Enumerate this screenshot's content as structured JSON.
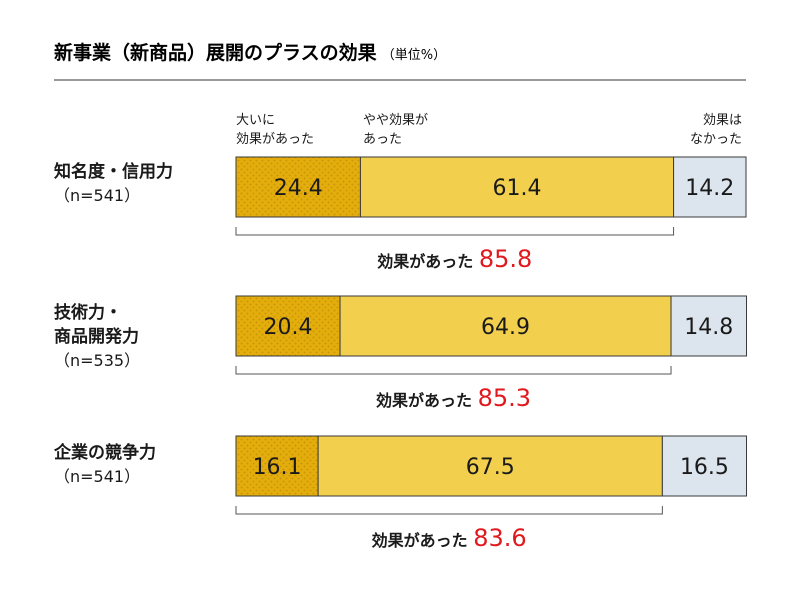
{
  "title": "新事業（新商品）展開のプラスの効果",
  "unit": "（単位%）",
  "legend": [
    {
      "line1": "大いに",
      "line2": "効果があった"
    },
    {
      "line1": "やや効果が",
      "line2": "あった"
    },
    {
      "line1": "効果は",
      "line2": "なかった"
    }
  ],
  "colors": {
    "great": "#e3ad0c",
    "some": "#f3cf4e",
    "none": "#dce5ee",
    "total": "#e0191e",
    "rule": "#333333",
    "text": "#1a1a1a"
  },
  "chart_data": {
    "type": "bar",
    "orientation": "horizontal",
    "stacked": true,
    "xlim": [
      0,
      100
    ],
    "categories": [
      {
        "label_lines": [
          "知名度・信用力",
          "（n=541）"
        ],
        "total_label": "効果があった",
        "total": "85.8"
      },
      {
        "label_lines": [
          "技術力・",
          "商品開発力",
          "（n=535）"
        ],
        "total_label": "効果があった",
        "total": "85.3"
      },
      {
        "label_lines": [
          "企業の競争力",
          "（n=541）"
        ],
        "total_label": "効果があった",
        "total": "83.6"
      }
    ],
    "series": [
      {
        "name": "大いに効果があった",
        "color": "#e3ad0c",
        "values": [
          24.4,
          20.4,
          16.1
        ]
      },
      {
        "name": "やや効果があった",
        "color": "#f3cf4e",
        "values": [
          61.4,
          64.9,
          67.5
        ]
      },
      {
        "name": "効果はなかった",
        "color": "#dce5ee",
        "values": [
          14.2,
          14.8,
          16.5
        ]
      }
    ]
  }
}
